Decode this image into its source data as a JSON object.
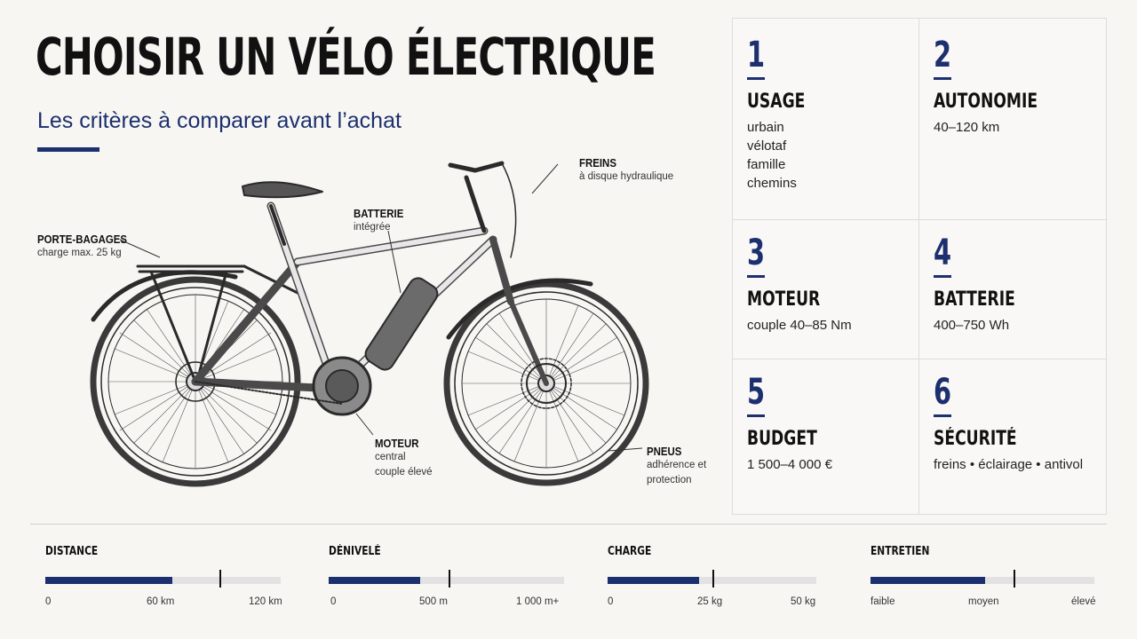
{
  "header": {
    "title": "CHOISIR UN VÉLO ÉLECTRIQUE",
    "subtitle": "Les critères à comparer avant l’achat"
  },
  "callouts": {
    "porte_bagages": {
      "title": "PORTE-BAGAGES",
      "desc": "charge max. 25 kg"
    },
    "batterie": {
      "title": "BATTERIE",
      "desc": "intégrée"
    },
    "freins": {
      "title": "FREINS",
      "desc": "à disque hydraulique"
    },
    "moteur": {
      "title": "MOTEUR",
      "desc1": "central",
      "desc2": "couple élevé"
    },
    "pneus": {
      "title": "PNEUS",
      "desc1": "adhérence et",
      "desc2": "protection"
    }
  },
  "criteria": [
    {
      "num": "1",
      "title": "USAGE",
      "values": [
        "urbain",
        "vélotaf",
        "famille",
        "chemins"
      ]
    },
    {
      "num": "2",
      "title": "AUTONOMIE",
      "values": [
        "40–120 km"
      ]
    },
    {
      "num": "3",
      "title": "MOTEUR",
      "values": [
        "couple 40–85 Nm"
      ]
    },
    {
      "num": "4",
      "title": "BATTERIE",
      "values": [
        "400–750 Wh"
      ]
    },
    {
      "num": "5",
      "title": "BUDGET",
      "values": [
        "1 500–4 000 €"
      ]
    },
    {
      "num": "6",
      "title": "SÉCURITÉ",
      "values": [
        "freins • éclairage • antivol"
      ]
    }
  ],
  "scales": [
    {
      "label": "DISTANCE",
      "ticks": [
        "0",
        "60 km",
        "120 km"
      ],
      "fill": 0.54,
      "marker": 0.74
    },
    {
      "label": "DÉNIVELÉ",
      "ticks": [
        "0",
        "500 m",
        "1 000 m+"
      ],
      "fill": 0.39,
      "marker": 0.51
    },
    {
      "label": "CHARGE",
      "ticks": [
        "0",
        "25 kg",
        "50 kg"
      ],
      "fill": 0.44,
      "marker": 0.5
    },
    {
      "label": "ENTRETIEN",
      "ticks": [
        "faible",
        "moyen",
        "élevé"
      ],
      "fill": 0.51,
      "marker": 0.64
    }
  ],
  "colors": {
    "accent": "#1c2f6e",
    "track": "#e2e2e2",
    "background": "#f7f6f3"
  }
}
